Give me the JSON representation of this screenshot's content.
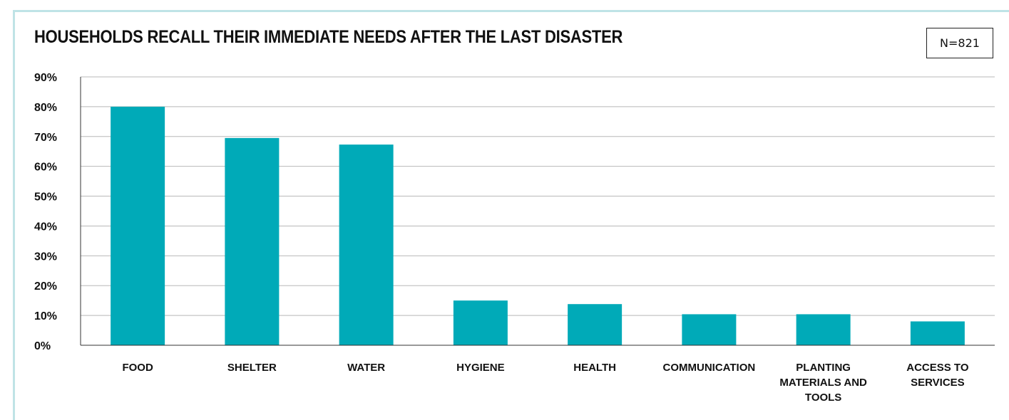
{
  "header": {
    "title": "HOUSEHOLDS RECALL THEIR IMMEDIATE NEEDS AFTER THE LAST DISASTER",
    "badge": "N=821"
  },
  "colors": {
    "bar": "#00aab8",
    "grid": "#b8b8b8",
    "axis": "#333333",
    "frame": "#bfe3e6"
  },
  "chart_data": {
    "type": "bar",
    "title": "HOUSEHOLDS RECALL THEIR IMMEDIATE NEEDS AFTER THE LAST DISASTER",
    "categories": [
      [
        "FOOD"
      ],
      [
        "SHELTER"
      ],
      [
        "WATER"
      ],
      [
        "HYGIENE"
      ],
      [
        "HEALTH"
      ],
      [
        "COMMUNICATION"
      ],
      [
        "PLANTING",
        "MATERIALS AND",
        "TOOLS"
      ],
      [
        "ACCESS TO",
        "SERVICES"
      ]
    ],
    "values": [
      80,
      69.5,
      67.3,
      15,
      13.8,
      10.4,
      10.4,
      8
    ],
    "unit": "%",
    "ylim": [
      0,
      90
    ],
    "yticks": [
      "0%",
      "10%",
      "20%",
      "30%",
      "40%",
      "50%",
      "60%",
      "70%",
      "80%",
      "90%"
    ],
    "grid": true,
    "legend": "none"
  }
}
